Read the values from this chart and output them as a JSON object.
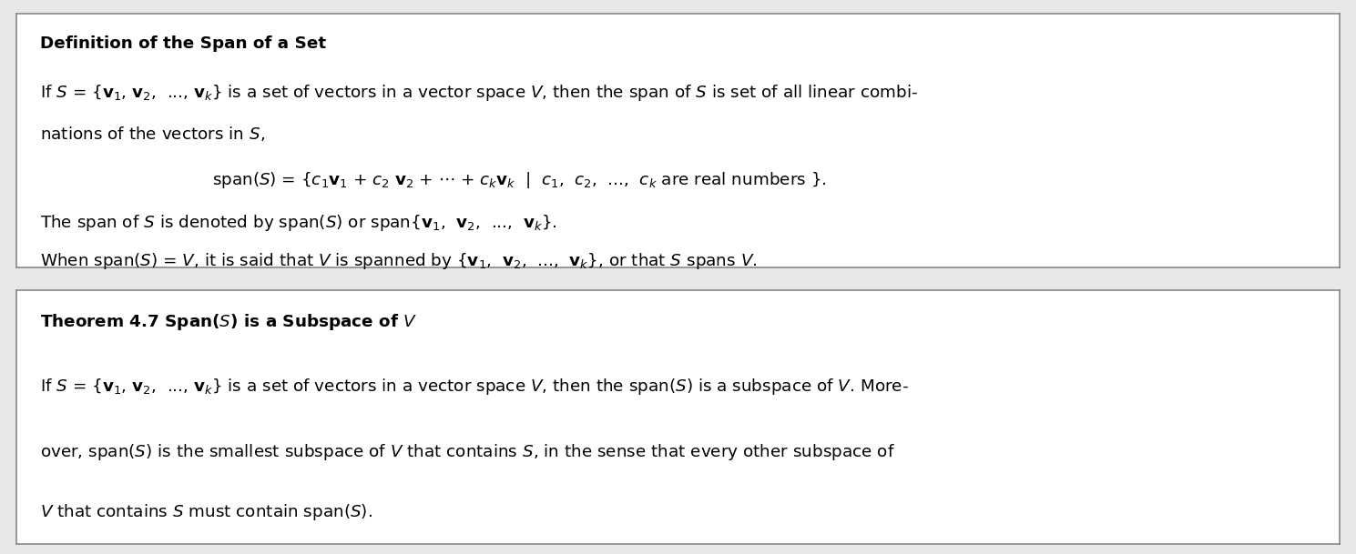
{
  "fig_width": 14.89,
  "fig_height": 6.09,
  "bg_color": "#e8e8e8",
  "box_bg": "#ffffff",
  "border_color": "#888888",
  "font_size": 13.2,
  "title_font_size": 13.2,
  "box1_title": "Definition of the Span of a Set",
  "box1_line1": "If $S$ = {$\\mathbf{v}_1$, $\\mathbf{v}_2$,  ..., $\\mathbf{v}_k$} is a set of vectors in a vector space $V$, then the span of $S$ is set of all linear combi-",
  "box1_line2": "nations of the vectors in $S$,",
  "box1_line3": "span($S$) = {$c_1\\mathbf{v}_1$ + $c_2$ $\\mathbf{v}_2$ + $\\cdots$ + $c_k\\mathbf{v}_k$  |  $c_1$,  $c_2$,  ...,  $c_k$ are real numbers }.",
  "box1_line4": "The span of $S$ is denoted by span($S$) or span{$\\mathbf{v}_1$,  $\\mathbf{v}_2$,  ...,  $\\mathbf{v}_k$}.",
  "box1_line5": "When span($S$) = $V$, it is said that $V$ is spanned by {$\\mathbf{v}_1$,  $\\mathbf{v}_2$,  ...,  $\\mathbf{v}_k$}, or that $S$ spans $V$.",
  "box2_title": "Theorem 4.7 Span($S$) is a Subspace of $V$",
  "box2_line1": "If $S$ = {$\\mathbf{v}_1$, $\\mathbf{v}_2$,  ..., $\\mathbf{v}_k$} is a set of vectors in a vector space $V$, then the span($S$) is a subspace of $V$. More-",
  "box2_line2": "over, span($S$) is the smallest subspace of $V$ that contains $S$, in the sense that every other subspace of",
  "box2_line3": "$V$ that contains $S$ must contain span($S$)."
}
